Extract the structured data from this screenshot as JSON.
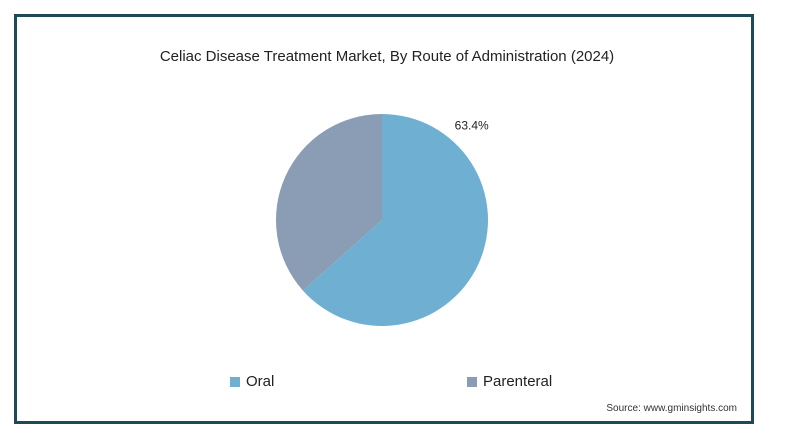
{
  "chart_data": {
    "type": "pie",
    "title": "Celiac Disease Treatment Market, By Route of Administration (2024)",
    "slices": [
      {
        "name": "Oral",
        "value": 63.4,
        "label": "63.4%",
        "color": "#6fb0d2"
      },
      {
        "name": "Parenteral",
        "value": 36.6,
        "label": "",
        "color": "#8a9db5"
      }
    ],
    "legend_placement": "bottom"
  },
  "source": "Source: www.gminsights.com"
}
